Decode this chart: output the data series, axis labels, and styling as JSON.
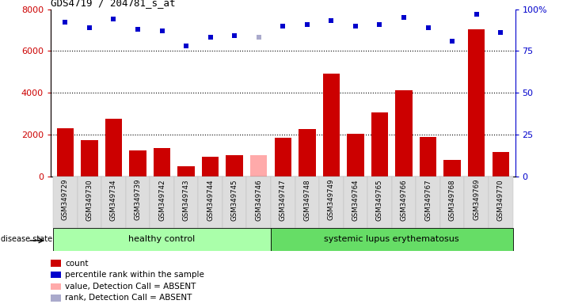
{
  "title": "GDS4719 / 204781_s_at",
  "samples": [
    "GSM349729",
    "GSM349730",
    "GSM349734",
    "GSM349739",
    "GSM349742",
    "GSM349743",
    "GSM349744",
    "GSM349745",
    "GSM349746",
    "GSM349747",
    "GSM349748",
    "GSM349749",
    "GSM349764",
    "GSM349765",
    "GSM349766",
    "GSM349767",
    "GSM349768",
    "GSM349769",
    "GSM349770"
  ],
  "counts": [
    2300,
    1750,
    2750,
    1250,
    1350,
    500,
    950,
    1000,
    null,
    1850,
    2250,
    4900,
    2050,
    3050,
    4100,
    1900,
    800,
    7050,
    1150
  ],
  "counts_absent": [
    null,
    null,
    null,
    null,
    null,
    null,
    null,
    null,
    1000,
    null,
    null,
    null,
    null,
    null,
    null,
    null,
    null,
    null,
    null
  ],
  "percentiles": [
    92,
    89,
    94,
    88,
    87,
    78,
    83,
    84,
    null,
    90,
    91,
    93,
    90,
    91,
    95,
    89,
    81,
    97,
    86
  ],
  "percentiles_absent": [
    null,
    null,
    null,
    null,
    null,
    null,
    null,
    null,
    83,
    null,
    null,
    null,
    null,
    null,
    null,
    null,
    null,
    null,
    null
  ],
  "healthy_count": 9,
  "lupus_count": 10,
  "group_labels": [
    "healthy control",
    "systemic lupus erythematosus"
  ],
  "bar_color_present": "#cc0000",
  "bar_color_absent": "#ffaaaa",
  "dot_color_present": "#0000cc",
  "dot_color_absent": "#aaaacc",
  "ylim_left": [
    0,
    8000
  ],
  "ylim_right": [
    0,
    100
  ],
  "yticks_left": [
    0,
    2000,
    4000,
    6000,
    8000
  ],
  "yticks_right": [
    0,
    25,
    50,
    75,
    100
  ],
  "group_color_healthy": "#aaffaa",
  "group_color_lupus": "#66dd66",
  "disease_state_label": "disease state",
  "legend_items": [
    {
      "label": "count",
      "color": "#cc0000"
    },
    {
      "label": "percentile rank within the sample",
      "color": "#0000cc"
    },
    {
      "label": "value, Detection Call = ABSENT",
      "color": "#ffaaaa"
    },
    {
      "label": "rank, Detection Call = ABSENT",
      "color": "#aaaacc"
    }
  ]
}
